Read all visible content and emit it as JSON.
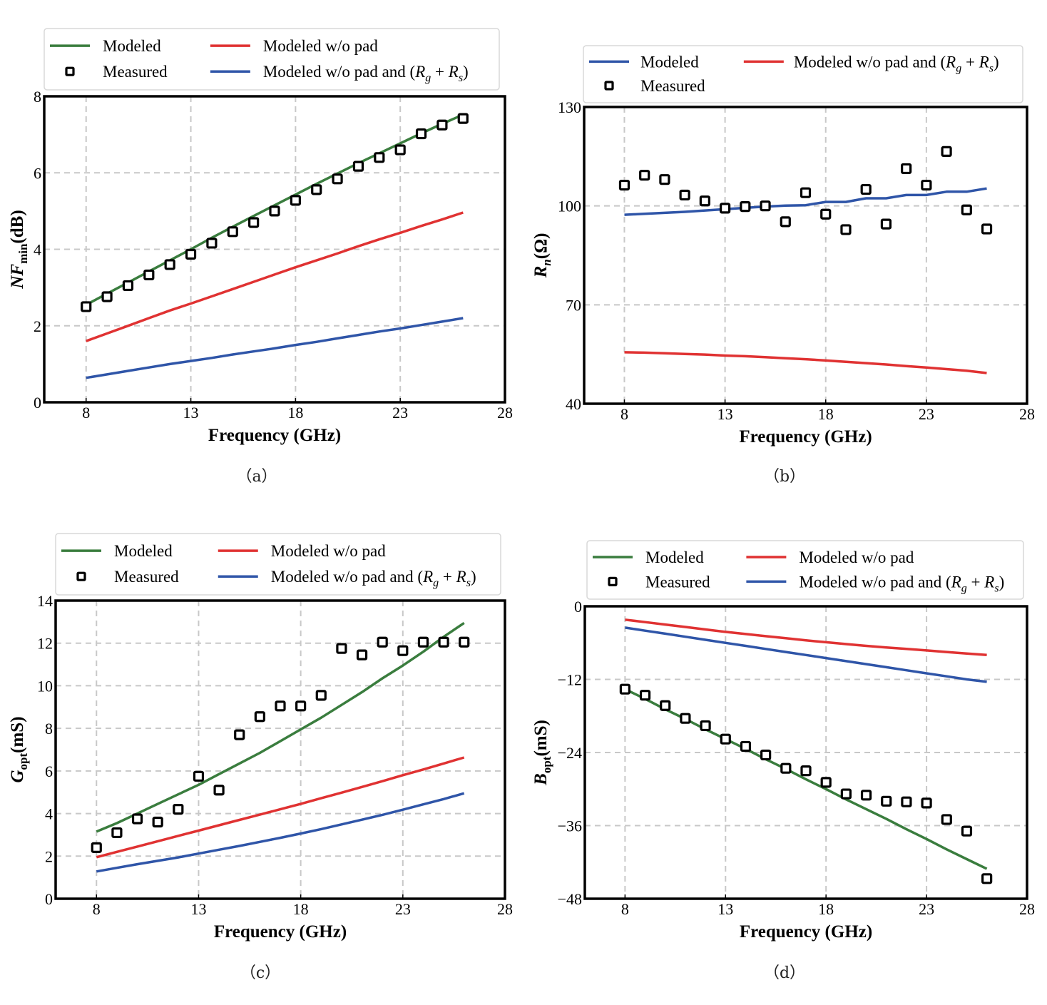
{
  "colors": {
    "modeled": "#3a7d3e",
    "modeled_wo_pad": "#e03232",
    "modeled_wo_pad_rgrs": "#2f55a8",
    "measured": "#000000",
    "grid": "#c8c8c8"
  },
  "legend_labels": {
    "modeled": "Modeled",
    "measured": "Measured",
    "modeled_wo_pad": "Modeled w/o pad",
    "modeled_wo_pad_rgrs_prefix": "Modeled w/o pad and (",
    "R": "R",
    "g": "g",
    "plus": " + ",
    "s": "s",
    "close": ")"
  },
  "captions": [
    "（a）",
    "（b）",
    "（c）",
    "（d）"
  ],
  "chart_data": [
    {
      "id": "a",
      "type": "line",
      "title": "",
      "xlabel": "Frequency (GHz)",
      "ylabel": "NFmin (dB)",
      "ylabel_parts": {
        "main": "NF",
        "sub": "min",
        "unit": "(dB)"
      },
      "xlim": [
        6,
        28
      ],
      "ylim": [
        0,
        8
      ],
      "xticks": [
        8,
        13,
        18,
        23,
        28
      ],
      "yticks": [
        0,
        2,
        4,
        6,
        8
      ],
      "grid": true,
      "legend_position": "top (above plot)",
      "legend_layout": "A",
      "x": [
        8,
        9,
        10,
        11,
        12,
        13,
        14,
        15,
        16,
        17,
        18,
        19,
        20,
        21,
        22,
        23,
        24,
        25,
        26
      ],
      "series": [
        {
          "name": "Modeled",
          "key": "modeled",
          "kind": "line",
          "values": [
            2.55,
            2.84,
            3.13,
            3.42,
            3.71,
            4.0,
            4.3,
            4.59,
            4.87,
            5.15,
            5.43,
            5.71,
            5.98,
            6.25,
            6.51,
            6.77,
            7.03,
            7.28,
            7.52
          ]
        },
        {
          "name": "Measured",
          "key": "measured",
          "kind": "marker",
          "values": [
            2.5,
            2.76,
            3.05,
            3.33,
            3.6,
            3.87,
            4.16,
            4.46,
            4.7,
            5.0,
            5.28,
            5.56,
            5.84,
            6.17,
            6.4,
            6.6,
            7.02,
            7.25,
            7.42
          ]
        },
        {
          "name": "Modeled w/o pad",
          "key": "modeled_wo_pad",
          "kind": "line",
          "values": [
            1.6,
            1.8,
            2.0,
            2.2,
            2.4,
            2.58,
            2.77,
            2.96,
            3.15,
            3.34,
            3.53,
            3.71,
            3.89,
            4.08,
            4.26,
            4.43,
            4.61,
            4.78,
            4.96
          ]
        },
        {
          "name": "Modeled w/o pad and (Rg+Rs)",
          "key": "modeled_wo_pad_rgrs",
          "kind": "line",
          "values": [
            0.64,
            0.73,
            0.82,
            0.91,
            1.0,
            1.08,
            1.16,
            1.25,
            1.33,
            1.41,
            1.5,
            1.58,
            1.67,
            1.76,
            1.85,
            1.93,
            2.02,
            2.11,
            2.2
          ]
        }
      ]
    },
    {
      "id": "b",
      "type": "line",
      "title": "",
      "xlabel": "Frequency (GHz)",
      "ylabel": "Rn (Ω)",
      "ylabel_parts": {
        "main": "R",
        "sub": "n",
        "unit": "(Ω)"
      },
      "xlim": [
        6,
        28
      ],
      "ylim": [
        40,
        130
      ],
      "xticks": [
        8,
        13,
        18,
        23,
        28
      ],
      "yticks": [
        40,
        70,
        100,
        130
      ],
      "grid": true,
      "legend_position": "top (above plot)",
      "legend_layout": "B",
      "x": [
        8,
        9,
        10,
        11,
        12,
        13,
        14,
        15,
        16,
        17,
        18,
        19,
        20,
        21,
        22,
        23,
        24,
        25,
        26
      ],
      "series": [
        {
          "name": "Modeled",
          "key": "modeled_wo_pad_rgrs",
          "kind": "line",
          "values": [
            97.3,
            97.6,
            97.9,
            98.2,
            98.6,
            99.0,
            99.4,
            99.8,
            100.1,
            100.2,
            101.2,
            101.2,
            102.3,
            102.3,
            103.3,
            103.3,
            104.3,
            104.3,
            105.3
          ]
        },
        {
          "name": "Measured",
          "key": "measured",
          "kind": "marker",
          "values": [
            106.3,
            109.3,
            108.0,
            103.3,
            101.5,
            99.3,
            99.8,
            100.0,
            95.2,
            104.0,
            97.5,
            92.8,
            105.0,
            94.5,
            111.3,
            106.3,
            116.5,
            98.8,
            93.0
          ]
        },
        {
          "name": "Modeled w/o pad and (Rg+Rs)",
          "key": "modeled_wo_pad",
          "kind": "line",
          "values": [
            55.6,
            55.5,
            55.3,
            55.1,
            54.9,
            54.6,
            54.4,
            54.1,
            53.8,
            53.5,
            53.1,
            52.7,
            52.3,
            51.9,
            51.4,
            51.0,
            50.5,
            50.0,
            49.3
          ]
        }
      ]
    },
    {
      "id": "c",
      "type": "line",
      "title": "",
      "xlabel": "Frequency (GHz)",
      "ylabel": "Gopt (mS)",
      "ylabel_parts": {
        "main": "G",
        "sub": "opt",
        "unit": "(mS)"
      },
      "xlim": [
        6,
        28
      ],
      "ylim": [
        0,
        14
      ],
      "xticks": [
        8,
        13,
        18,
        23,
        28
      ],
      "yticks": [
        0,
        2,
        4,
        6,
        8,
        10,
        12,
        14
      ],
      "grid": true,
      "legend_position": "top (above plot)",
      "legend_layout": "A",
      "x": [
        8,
        9,
        10,
        11,
        12,
        13,
        14,
        15,
        16,
        17,
        18,
        19,
        20,
        21,
        22,
        23,
        24,
        25,
        26
      ],
      "series": [
        {
          "name": "Modeled",
          "key": "modeled",
          "kind": "line",
          "values": [
            3.15,
            3.55,
            4.0,
            4.45,
            4.9,
            5.35,
            5.85,
            6.35,
            6.85,
            7.4,
            7.95,
            8.5,
            9.1,
            9.7,
            10.35,
            10.95,
            11.6,
            12.3,
            12.95
          ]
        },
        {
          "name": "Measured",
          "key": "measured",
          "kind": "marker",
          "values": [
            2.4,
            3.1,
            3.75,
            3.6,
            4.2,
            5.75,
            5.1,
            7.7,
            8.55,
            9.05,
            9.05,
            9.55,
            11.75,
            11.45,
            12.05,
            11.65,
            12.05,
            12.05,
            12.05
          ]
        },
        {
          "name": "Modeled w/o pad",
          "key": "modeled_wo_pad",
          "kind": "line",
          "values": [
            1.95,
            2.2,
            2.45,
            2.7,
            2.95,
            3.2,
            3.45,
            3.7,
            3.95,
            4.2,
            4.45,
            4.72,
            4.98,
            5.25,
            5.52,
            5.8,
            6.07,
            6.35,
            6.63
          ]
        },
        {
          "name": "Modeled w/o pad and (Rg+Rs)",
          "key": "modeled_wo_pad_rgrs",
          "kind": "line",
          "values": [
            1.28,
            1.45,
            1.62,
            1.78,
            1.94,
            2.12,
            2.3,
            2.48,
            2.67,
            2.86,
            3.06,
            3.27,
            3.49,
            3.71,
            3.94,
            4.18,
            4.43,
            4.68,
            4.95
          ]
        }
      ]
    },
    {
      "id": "d",
      "type": "line",
      "title": "",
      "xlabel": "Frequency (GHz)",
      "ylabel": "Bopt (mS)",
      "ylabel_parts": {
        "main": "B",
        "sub": "opt",
        "unit": "(mS)"
      },
      "xlim": [
        6,
        28
      ],
      "ylim": [
        -48,
        0
      ],
      "xticks": [
        8,
        13,
        18,
        23,
        28
      ],
      "yticks": [
        -48,
        -36,
        -24,
        -12,
        0
      ],
      "ytick_labels": [
        "−48",
        "−36",
        "−24",
        "−12",
        "0"
      ],
      "grid": true,
      "legend_position": "top (above plot)",
      "legend_layout": "A",
      "x": [
        8,
        9,
        10,
        11,
        12,
        13,
        14,
        15,
        16,
        17,
        18,
        19,
        20,
        21,
        22,
        23,
        24,
        25,
        26
      ],
      "series": [
        {
          "name": "Modeled",
          "key": "modeled",
          "kind": "line",
          "values": [
            -13.6,
            -15.2,
            -16.9,
            -18.5,
            -20.2,
            -21.8,
            -23.4,
            -25.1,
            -26.7,
            -28.4,
            -30.0,
            -31.7,
            -33.3,
            -34.9,
            -36.6,
            -38.2,
            -39.9,
            -41.5,
            -43.1
          ]
        },
        {
          "name": "Measured",
          "key": "measured",
          "kind": "marker",
          "values": [
            -13.6,
            -14.6,
            -16.3,
            -18.4,
            -19.6,
            -21.8,
            -23.0,
            -24.4,
            -26.6,
            -27.0,
            -28.9,
            -30.8,
            -31.0,
            -32.0,
            -32.1,
            -32.3,
            -35.0,
            -36.9,
            -44.7
          ]
        },
        {
          "name": "Modeled w/o pad",
          "key": "modeled_wo_pad",
          "kind": "line",
          "values": [
            -2.2,
            -2.6,
            -3.0,
            -3.4,
            -3.8,
            -4.2,
            -4.55,
            -4.9,
            -5.25,
            -5.6,
            -5.9,
            -6.2,
            -6.5,
            -6.75,
            -7.0,
            -7.25,
            -7.5,
            -7.75,
            -8.0
          ]
        },
        {
          "name": "Modeled w/o pad and (Rg+Rs)",
          "key": "modeled_wo_pad_rgrs",
          "kind": "line",
          "values": [
            -3.5,
            -4.0,
            -4.5,
            -5.0,
            -5.5,
            -6.0,
            -6.5,
            -7.0,
            -7.5,
            -8.0,
            -8.5,
            -9.0,
            -9.5,
            -10.0,
            -10.5,
            -11.0,
            -11.5,
            -12.0,
            -12.4
          ]
        }
      ]
    }
  ]
}
